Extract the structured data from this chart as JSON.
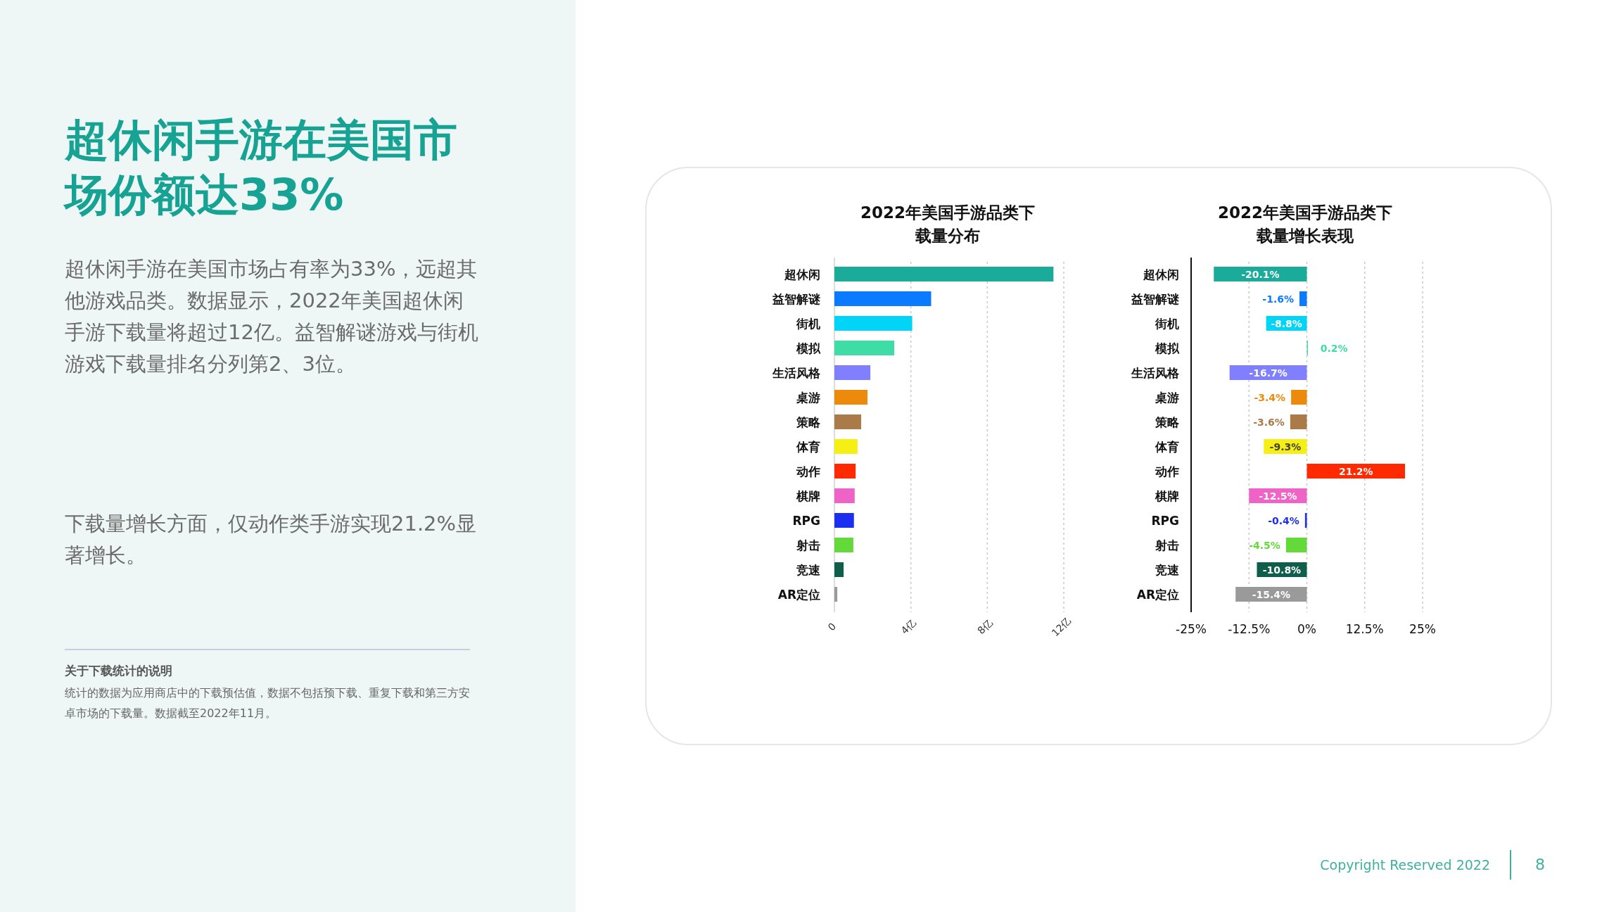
{
  "chart_data": [
    {
      "type": "other",
      "title": "超休闲手游在美国市场份额达33%",
      "annotations": [
        "超休闲手游在美国市场占有率为33%，远超其他游戏品类。数据显示，2022年美国超休闲手游下载量将超过12亿。益智解谜游戏与街机游戏下载量排名分列第2、3位。",
        "下载量增长方面，仅动作类手游实现21.2%显著增长。",
        "关于下载统计的说明",
        "统计的数据为应用商店中的下载预估值，数据不包括预下载、重复下载和第三方安卓市场的下载量。数据截至2022年11月。",
        "Copyright Reserved 2022",
        "8"
      ]
    },
    {
      "type": "bar",
      "orientation": "horizontal",
      "title": "2022年美国手游品类下载量分布",
      "categories": [
        "超休闲",
        "益智解谜",
        "街机",
        "模拟",
        "生活风格",
        "桌游",
        "策略",
        "体育",
        "动作",
        "棋牌",
        "RPG",
        "射击",
        "竞速",
        "AR定位"
      ],
      "values": [
        11.46,
        5.06,
        4.07,
        3.13,
        1.88,
        1.73,
        1.4,
        1.21,
        1.11,
        1.06,
        1.02,
        0.99,
        0.48,
        0.15
      ],
      "colors": [
        "#1aab9b",
        "#0a7bff",
        "#00d5f7",
        "#3fdca5",
        "#8080ff",
        "#ec8a0b",
        "#aa7a48",
        "#f5ef14",
        "#ff2a00",
        "#ef63c7",
        "#1a2ff0",
        "#63d93a",
        "#0f5e4c",
        "#9a9a9a"
      ],
      "xlim": [
        0,
        12
      ],
      "xticks": [
        0,
        {
          "value": 4,
          "label": "4亿"
        },
        {
          "value": 8,
          "label": "8亿"
        },
        {
          "value": 12,
          "label": "12亿"
        }
      ],
      "grid": "x"
    },
    {
      "type": "bar",
      "orientation": "horizontal",
      "title": "2022年美国手游品类下载量增长表现",
      "categories": [
        "超休闲",
        "益智解谜",
        "街机",
        "模拟",
        "生活风格",
        "桌游",
        "策略",
        "体育",
        "动作",
        "棋牌",
        "RPG",
        "射击",
        "竞速",
        "AR定位"
      ],
      "values": [
        -20.1,
        -1.6,
        -8.8,
        0.2,
        -16.7,
        -3.4,
        -3.6,
        -9.3,
        21.2,
        -12.5,
        -0.4,
        -4.5,
        -10.8,
        -15.4
      ],
      "value_labels": [
        "-20.1%",
        "-1.6%",
        "-8.8%",
        "0.2%",
        "-16.7%",
        "-3.4%",
        "-3.6%",
        "-9.3%",
        "21.2%",
        "-12.5%",
        "-0.4%",
        "-4.5%",
        "-10.8%",
        "-15.4%"
      ],
      "colors": [
        "#1aab9b",
        "#0a7bff",
        "#00d5f7",
        "#3fdca5",
        "#8080ff",
        "#ec8a0b",
        "#aa7a48",
        "#f5ef14",
        "#ff2a00",
        "#ef63c7",
        "#1a2ff0",
        "#63d93a",
        "#0f5e4c",
        "#9a9a9a"
      ],
      "xlim": [
        -25,
        25
      ],
      "xticks": [
        {
          "value": -25,
          "label": "-25%"
        },
        {
          "value": -12.5,
          "label": "-12.5%"
        },
        {
          "value": 0,
          "label": "0%"
        },
        {
          "value": 12.5,
          "label": "12.5%"
        },
        {
          "value": 25,
          "label": "25%"
        }
      ],
      "grid": "x"
    }
  ]
}
